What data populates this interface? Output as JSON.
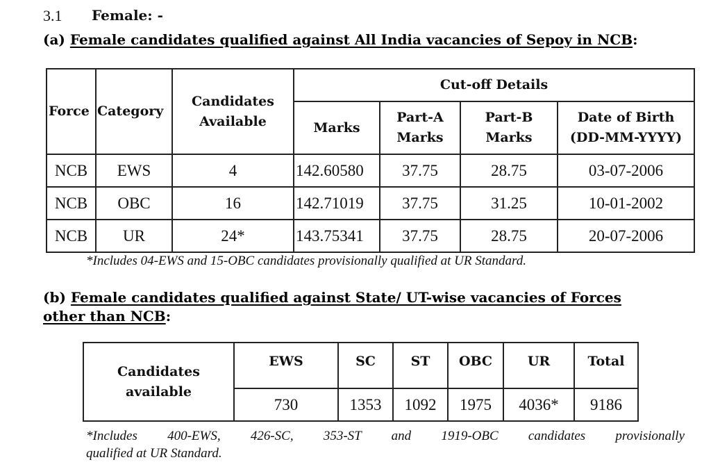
{
  "section": {
    "number": "3.1",
    "title": "Female: -"
  },
  "part_a": {
    "label": "(a)",
    "heading": "Female candidates qualified against All India vacancies of Sepoy in NCB",
    "columns": {
      "force": "Force",
      "category": "Category",
      "candidates_line1": "Candidates",
      "candidates_line2": "Available",
      "cutoff": "Cut-off Details",
      "marks": "Marks",
      "parta_line1": "Part-A",
      "parta_line2": "Marks",
      "partb_line1": "Part-B",
      "partb_line2": "Marks",
      "dob_line1": "Date of Birth",
      "dob_line2": "(DD-MM-YYYY)"
    },
    "rows": [
      {
        "force": "NCB",
        "category": "EWS",
        "candidates": "4",
        "marks": "142.60580",
        "part_a": "37.75",
        "part_b": "28.75",
        "dob": "03-07-2006"
      },
      {
        "force": "NCB",
        "category": "OBC",
        "candidates": "16",
        "marks": "142.71019",
        "part_a": "37.75",
        "part_b": "31.25",
        "dob": "10-01-2002"
      },
      {
        "force": "NCB",
        "category": "UR",
        "candidates": "24*",
        "marks": "143.75341",
        "part_a": "37.75",
        "part_b": "28.75",
        "dob": "20-07-2006"
      }
    ],
    "note": "*Includes 04-EWS and 15-OBC candidates provisionally qualified at UR Standard."
  },
  "part_b": {
    "label": "(b)",
    "heading_line1": "Female candidates qualified against State/ UT-wise vacancies of Forces",
    "heading_line2": "other than NCB",
    "row_label_line1": "Candidates",
    "row_label_line2": "available",
    "columns": [
      "EWS",
      "SC",
      "ST",
      "OBC",
      "UR",
      "Total"
    ],
    "values": [
      "730",
      "1353",
      "1092",
      "1975",
      "4036*",
      "9186"
    ],
    "note_line1": "*Includes 400-EWS, 426-SC, 353-ST and 1919-OBC candidates provisionally",
    "note_line2": "qualified at UR Standard."
  }
}
